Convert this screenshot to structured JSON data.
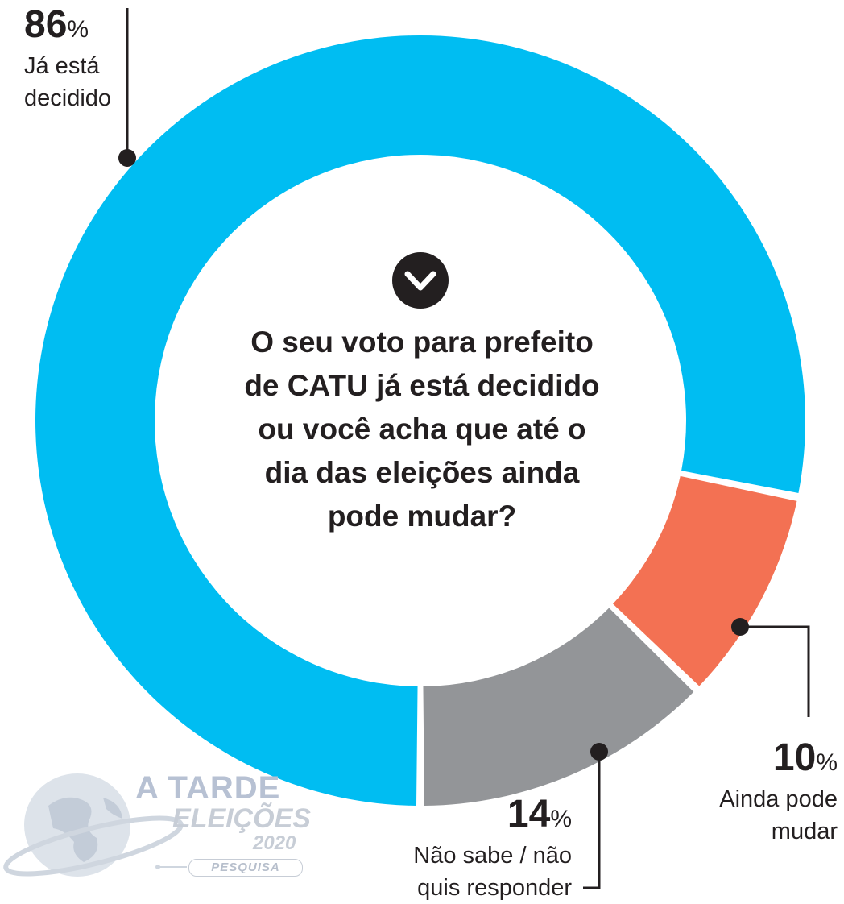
{
  "question": {
    "lines": [
      "O seu voto para prefeito",
      "de CATU já está decidido",
      "ou você acha que até o",
      "dia das eleições ainda",
      "pode mudar?"
    ]
  },
  "chart_data": {
    "type": "pie",
    "donut": true,
    "slices": [
      {
        "label": "Já está decidido",
        "value": 86,
        "color": "#00bdf2"
      },
      {
        "label": "Ainda pode mudar",
        "value": 10,
        "color": "#f37153"
      },
      {
        "label": "Não sabe / não quis responder",
        "value": 14,
        "color": "#939598"
      }
    ]
  },
  "callouts": {
    "decided": {
      "value": "86",
      "symbol": "%",
      "line1": "Já está",
      "line2": "decidido"
    },
    "may_change": {
      "value": "10",
      "symbol": "%",
      "line1": "Ainda pode",
      "line2": "mudar"
    },
    "unknown": {
      "value": "14",
      "symbol": "%",
      "line1": "Não sabe / não",
      "line2": "quis responder"
    }
  },
  "logo": {
    "title": "A TARDE",
    "subtitle": "ELEIÇÕES",
    "year": "2020",
    "tag": "PESQUISA"
  },
  "icons": {
    "center": "chevron-down-icon"
  }
}
